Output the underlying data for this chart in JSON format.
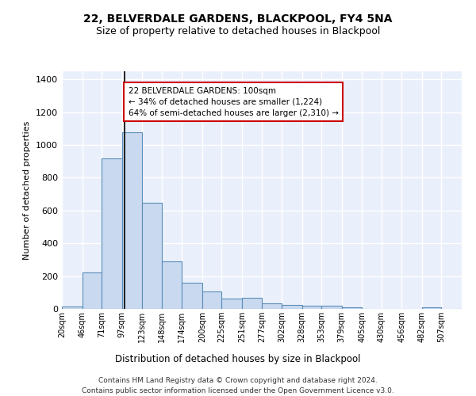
{
  "title1": "22, BELVERDALE GARDENS, BLACKPOOL, FY4 5NA",
  "title2": "Size of property relative to detached houses in Blackpool",
  "xlabel": "Distribution of detached houses by size in Blackpool",
  "ylabel": "Number of detached properties",
  "bin_edges": [
    20,
    46,
    71,
    97,
    123,
    148,
    174,
    200,
    225,
    251,
    277,
    302,
    328,
    353,
    379,
    405,
    430,
    456,
    482,
    507,
    533
  ],
  "bar_heights": [
    15,
    220,
    920,
    1080,
    650,
    290,
    160,
    105,
    65,
    70,
    35,
    25,
    20,
    18,
    12,
    0,
    0,
    0,
    8,
    0
  ],
  "bar_color": "#c9d9f0",
  "bar_edge_color": "#5b8db8",
  "property_size": 100,
  "annotation_text": "22 BELVERDALE GARDENS: 100sqm\n← 34% of detached houses are smaller (1,224)\n64% of semi-detached houses are larger (2,310) →",
  "annotation_box_color": "#ffffff",
  "annotation_box_edge_color": "#cc0000",
  "vline_color": "#000000",
  "ylim": [
    0,
    1450
  ],
  "yticks": [
    0,
    200,
    400,
    600,
    800,
    1000,
    1200,
    1400
  ],
  "background_color": "#eaf0fb",
  "grid_color": "#ffffff",
  "footer_line1": "Contains HM Land Registry data © Crown copyright and database right 2024.",
  "footer_line2": "Contains public sector information licensed under the Open Government Licence v3.0."
}
